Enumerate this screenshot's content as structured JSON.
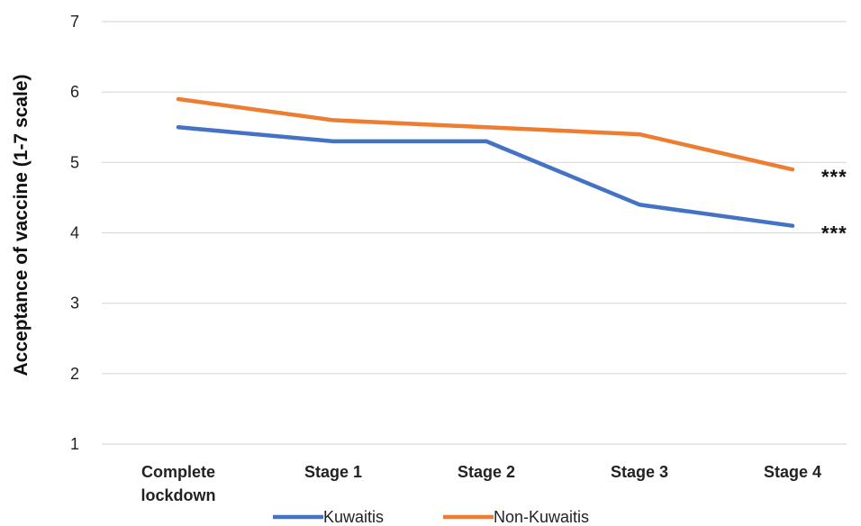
{
  "chart_data": {
    "type": "line",
    "ylabel": "Acceptance of vaccine (1-7 scale)",
    "xlabel": "",
    "ylim": [
      1,
      7
    ],
    "yticks": [
      "1",
      "2",
      "3",
      "4",
      "5",
      "6",
      "7"
    ],
    "grid": true,
    "legend_position": "bottom",
    "categories": [
      [
        "Complete",
        "lockdown"
      ],
      [
        "Stage 1"
      ],
      [
        "Stage 2"
      ],
      [
        "Stage 3"
      ],
      [
        "Stage 4"
      ]
    ],
    "series": [
      {
        "name": "Kuwaitis",
        "color": "#4472C4",
        "values": [
          5.5,
          5.3,
          5.3,
          4.4,
          4.1
        ],
        "end_annotation": "***"
      },
      {
        "name": "Non-Kuwaitis",
        "color": "#ED7D31",
        "values": [
          5.9,
          5.6,
          5.5,
          5.4,
          4.9
        ],
        "end_annotation": "***"
      }
    ]
  }
}
